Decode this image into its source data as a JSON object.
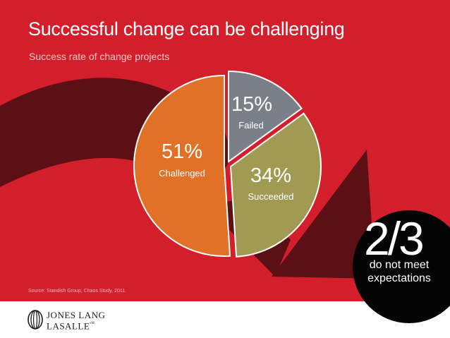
{
  "slide": {
    "title": "Successful change can be challenging",
    "subtitle": "Success rate of change projects",
    "source": "Source: Standish Group, Chaos Study, 2011.",
    "callout": {
      "fraction": "2/3",
      "caption": "do not meet expectations"
    },
    "logo": {
      "line1": "JONES LANG",
      "line2": "LASALLE",
      "mark": "ˢᴹ",
      "icon": "globe-lines-icon"
    }
  },
  "colors": {
    "background": "#d21f2b",
    "arrow": "#5c0f14",
    "failed": "#7b7f88",
    "succeeded": "#a19a52",
    "challenged": "#e07127",
    "callout": "#050505"
  },
  "chart_data": {
    "type": "pie",
    "title": "Success rate of change projects",
    "slices": [
      {
        "label": "Failed",
        "value": 15,
        "value_label": "15%"
      },
      {
        "label": "Succeeded",
        "value": 34,
        "value_label": "34%"
      },
      {
        "label": "Challenged",
        "value": 51,
        "value_label": "51%"
      }
    ]
  }
}
